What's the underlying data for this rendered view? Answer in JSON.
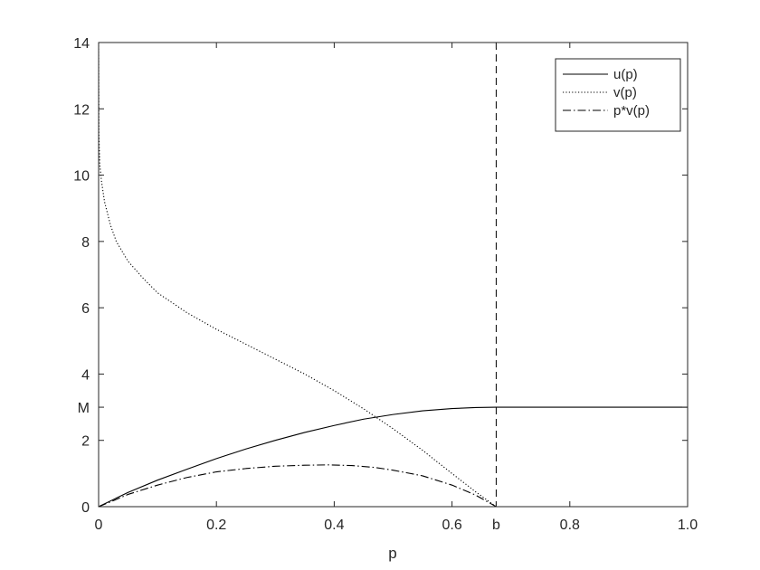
{
  "chart_data": {
    "type": "line",
    "title": "",
    "xlabel": "p",
    "ylabel": "",
    "xlim": [
      0,
      1
    ],
    "ylim": [
      0,
      14
    ],
    "grid": false,
    "legend_position": "top-right",
    "x_ticks": [
      {
        "value": 0,
        "label": "0"
      },
      {
        "value": 0.2,
        "label": "0.2"
      },
      {
        "value": 0.4,
        "label": "0.4"
      },
      {
        "value": 0.6,
        "label": "0.6"
      },
      {
        "value": 0.675,
        "label": "b"
      },
      {
        "value": 0.8,
        "label": "0.8"
      },
      {
        "value": 1.0,
        "label": "1.0"
      }
    ],
    "y_ticks": [
      {
        "value": 0,
        "label": "0"
      },
      {
        "value": 2,
        "label": "2"
      },
      {
        "value": 3,
        "label": "M"
      },
      {
        "value": 4,
        "label": "4"
      },
      {
        "value": 6,
        "label": "6"
      },
      {
        "value": 8,
        "label": "8"
      },
      {
        "value": 10,
        "label": "10"
      },
      {
        "value": 12,
        "label": "12"
      },
      {
        "value": 14,
        "label": "14"
      }
    ],
    "vertical_line": {
      "x": 0.675,
      "style": "dashed"
    },
    "series": [
      {
        "name": "u(p)",
        "style": "solid",
        "color": "#000000",
        "points": [
          [
            0,
            0
          ],
          [
            0.05,
            0.43
          ],
          [
            0.1,
            0.8
          ],
          [
            0.15,
            1.13
          ],
          [
            0.2,
            1.45
          ],
          [
            0.25,
            1.74
          ],
          [
            0.3,
            2.0
          ],
          [
            0.35,
            2.24
          ],
          [
            0.4,
            2.45
          ],
          [
            0.45,
            2.64
          ],
          [
            0.5,
            2.78
          ],
          [
            0.55,
            2.89
          ],
          [
            0.6,
            2.96
          ],
          [
            0.64,
            2.99
          ],
          [
            0.675,
            3.0
          ],
          [
            0.7,
            3.0
          ],
          [
            0.8,
            3.0
          ],
          [
            0.9,
            3.0
          ],
          [
            1.0,
            3.0
          ]
        ]
      },
      {
        "name": "v(p)",
        "style": "dotted",
        "color": "#000000",
        "points": [
          [
            0,
            14
          ],
          [
            0.0005,
            11.2
          ],
          [
            0.002,
            10.3
          ],
          [
            0.005,
            9.8
          ],
          [
            0.01,
            9.2
          ],
          [
            0.02,
            8.5
          ],
          [
            0.03,
            8.0
          ],
          [
            0.05,
            7.4
          ],
          [
            0.075,
            6.9
          ],
          [
            0.1,
            6.45
          ],
          [
            0.15,
            5.85
          ],
          [
            0.2,
            5.35
          ],
          [
            0.25,
            4.9
          ],
          [
            0.3,
            4.45
          ],
          [
            0.35,
            4.0
          ],
          [
            0.4,
            3.5
          ],
          [
            0.45,
            2.95
          ],
          [
            0.5,
            2.35
          ],
          [
            0.55,
            1.7
          ],
          [
            0.6,
            1.0
          ],
          [
            0.64,
            0.45
          ],
          [
            0.675,
            0.0
          ]
        ]
      },
      {
        "name": "p*v(p)",
        "style": "dashdot",
        "color": "#000000",
        "points": [
          [
            0,
            0
          ],
          [
            0.025,
            0.18
          ],
          [
            0.05,
            0.37
          ],
          [
            0.1,
            0.65
          ],
          [
            0.15,
            0.88
          ],
          [
            0.2,
            1.05
          ],
          [
            0.25,
            1.15
          ],
          [
            0.3,
            1.22
          ],
          [
            0.35,
            1.25
          ],
          [
            0.39,
            1.26
          ],
          [
            0.43,
            1.24
          ],
          [
            0.47,
            1.18
          ],
          [
            0.5,
            1.1
          ],
          [
            0.55,
            0.93
          ],
          [
            0.6,
            0.65
          ],
          [
            0.64,
            0.35
          ],
          [
            0.675,
            0.0
          ]
        ]
      }
    ]
  }
}
